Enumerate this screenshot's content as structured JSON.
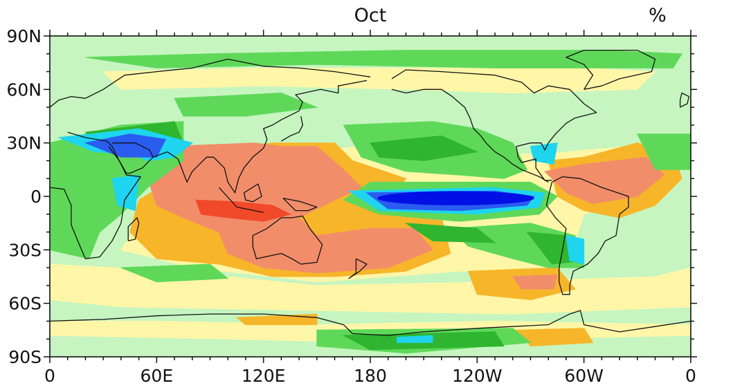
{
  "header": {
    "title": "Oct",
    "units": "%"
  },
  "map": {
    "projection": "equirectangular",
    "lon_range": [
      0,
      360
    ],
    "lat_range": [
      -90,
      90
    ],
    "lat_ticks": [
      {
        "lat": 90,
        "label": "90N"
      },
      {
        "lat": 60,
        "label": "60N"
      },
      {
        "lat": 30,
        "label": "30N"
      },
      {
        "lat": 0,
        "label": "0"
      },
      {
        "lat": -30,
        "label": "30S"
      },
      {
        "lat": -60,
        "label": "60S"
      },
      {
        "lat": -90,
        "label": "90S"
      }
    ],
    "lon_ticks": [
      {
        "lon": 0,
        "label": "0"
      },
      {
        "lon": 60,
        "label": "60E"
      },
      {
        "lon": 120,
        "label": "120E"
      },
      {
        "lon": 180,
        "label": "180"
      },
      {
        "lon": 240,
        "label": "120W"
      },
      {
        "lon": 300,
        "label": "60W"
      },
      {
        "lon": 360,
        "label": "0"
      }
    ],
    "colors": {
      "background": "#c6f5c0",
      "dark_blue": "#0010e6",
      "blue": "#2a5cf0",
      "cyan": "#1ed4ee",
      "dark_green": "#2fb52f",
      "green": "#5fd85a",
      "light_green": "#c6f5c0",
      "pale_yellow": "#fff6a8",
      "orange": "#f7b52a",
      "salmon": "#f28d6a",
      "red": "#f04a2a",
      "coast": "#111111"
    }
  }
}
